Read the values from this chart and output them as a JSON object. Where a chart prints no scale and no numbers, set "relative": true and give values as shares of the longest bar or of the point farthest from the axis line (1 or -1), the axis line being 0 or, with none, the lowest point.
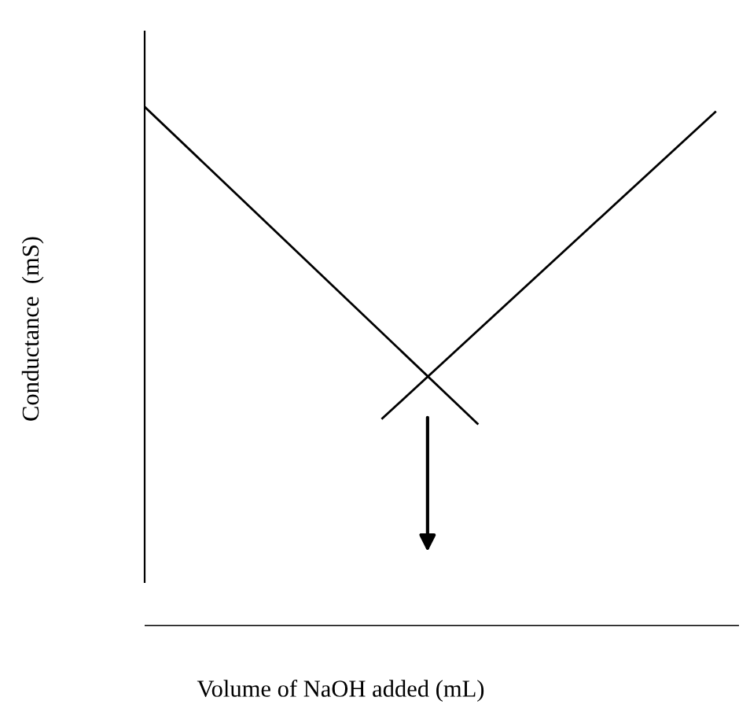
{
  "chart_data": {
    "type": "line",
    "relative": true,
    "xlabel": "Volume of NaOH added (mL)",
    "ylabel": "Conductance  (mS)",
    "tick_labels": false,
    "legend": false,
    "marker": "none",
    "line_style": "solid",
    "categories": [
      null,
      null,
      null,
      null,
      null,
      null,
      null,
      null,
      null,
      null,
      null,
      null,
      null,
      null,
      null,
      null,
      null,
      null,
      null,
      null,
      null,
      null,
      null,
      null,
      null,
      null
    ],
    "series": [
      {
        "color": "#000000",
        "values": [
          1.0,
          null,
          null,
          null,
          null,
          null,
          null,
          null,
          null,
          null,
          null,
          null,
          null,
          null,
          0.39,
          null,
          null,
          null,
          null,
          null,
          null,
          null,
          null,
          null,
          null,
          null
        ]
      },
      {
        "color": "#000000",
        "values": [
          null,
          null,
          null,
          null,
          null,
          null,
          null,
          null,
          null,
          null,
          0.4,
          null,
          null,
          null,
          null,
          null,
          null,
          null,
          null,
          null,
          null,
          null,
          null,
          null,
          0.99,
          null
        ]
      }
    ]
  }
}
